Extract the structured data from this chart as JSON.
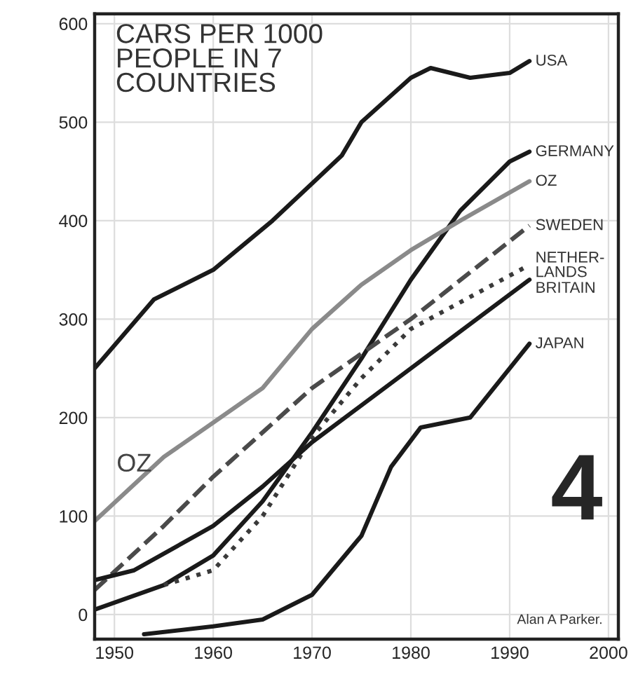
{
  "chart_data": {
    "type": "line",
    "title": "CARS PER 1000\nPEOPLE IN 7\nCOUNTRIES",
    "xlim": [
      1948,
      2001
    ],
    "ylim": [
      -25,
      610
    ],
    "xticks": [
      1950,
      1960,
      1970,
      1980,
      1990,
      2000
    ],
    "yticks": [
      0,
      100,
      200,
      300,
      400,
      500,
      600
    ],
    "grid": true,
    "legend": false,
    "series": [
      {
        "name": "USA",
        "color": "#1a1a1a",
        "line_style": "solid",
        "x": [
          1948,
          1954,
          1960,
          1966,
          1973,
          1975,
          1980,
          1982,
          1986,
          1990,
          1992
        ],
        "values": [
          250,
          320,
          350,
          400,
          466,
          500,
          545,
          555,
          545,
          550,
          562
        ]
      },
      {
        "name": "GERMANY",
        "color": "#1a1a1a",
        "line_style": "solid",
        "x": [
          1948,
          1955,
          1960,
          1965,
          1970,
          1975,
          1980,
          1985,
          1990,
          1992
        ],
        "values": [
          5,
          30,
          60,
          115,
          185,
          260,
          340,
          410,
          460,
          470
        ]
      },
      {
        "name": "OZ",
        "color": "#8a8a8a",
        "line_style": "solid",
        "x": [
          1948,
          1955,
          1960,
          1965,
          1970,
          1975,
          1980,
          1985,
          1992
        ],
        "values": [
          95,
          160,
          195,
          230,
          290,
          335,
          370,
          400,
          440
        ]
      },
      {
        "name": "SWEDEN",
        "color": "#4a4a4a",
        "line_style": "dashed",
        "x": [
          1948,
          1955,
          1960,
          1970,
          1980,
          1992
        ],
        "values": [
          25,
          90,
          140,
          230,
          300,
          395
        ]
      },
      {
        "name": "NETHER-\nLANDS",
        "color": "#3a3a3a",
        "line_style": "dotted",
        "x": [
          1955,
          1960,
          1965,
          1970,
          1975,
          1980,
          1992
        ],
        "values": [
          30,
          45,
          100,
          180,
          240,
          290,
          355
        ]
      },
      {
        "name": "BRITAIN",
        "color": "#1a1a1a",
        "line_style": "solid",
        "x": [
          1948,
          1952,
          1960,
          1965,
          1970,
          1980,
          1992
        ],
        "values": [
          35,
          45,
          90,
          130,
          175,
          250,
          340
        ]
      },
      {
        "name": "JAPAN",
        "color": "#1a1a1a",
        "line_style": "solid",
        "x": [
          1953,
          1960,
          1965,
          1970,
          1975,
          1978,
          1981,
          1986,
          1992
        ],
        "values": [
          -20,
          -12,
          -5,
          20,
          80,
          150,
          190,
          200,
          275
        ]
      }
    ],
    "annotations": [
      {
        "text": "OZ",
        "x": 1952,
        "y": 140
      },
      "4",
      "Alan A Parker."
    ]
  }
}
